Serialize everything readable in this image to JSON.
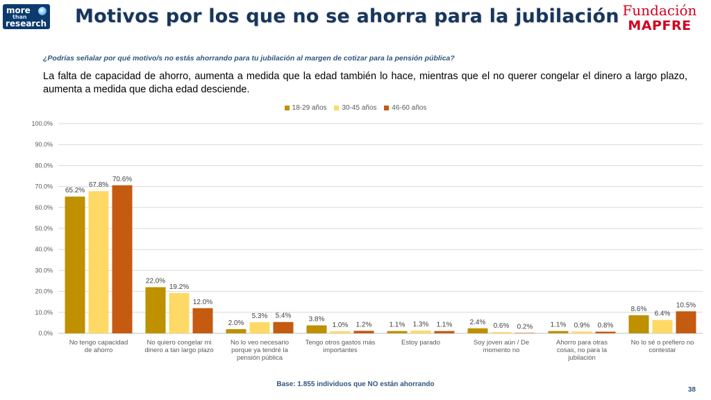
{
  "header": {
    "title": "Motivos por los que no se ahorra para la jubilación",
    "logo_left": {
      "line1": "more",
      "line2": "than",
      "line3": "research"
    },
    "logo_right": {
      "line1": "Fundación",
      "line2": "MAPFRE"
    }
  },
  "question": "¿Podrías señalar por qué motivo/s no estás ahorrando para tu jubilación al margen de cotizar para la pensión pública?",
  "summary": "La falta de capacidad de ahorro, aumenta a medida que la edad también lo hace, mientras que el no querer congelar el dinero a largo plazo, aumenta a medida que dicha edad desciende.",
  "footer": {
    "base": "Base: 1.855 individuos que NO están ahorrando",
    "page_number": "38"
  },
  "chart_data": {
    "type": "bar",
    "title": "",
    "xlabel": "",
    "ylabel": "",
    "ylim": [
      0,
      100
    ],
    "yticks": [
      "0.0%",
      "10.0%",
      "20.0%",
      "30.0%",
      "40.0%",
      "50.0%",
      "60.0%",
      "70.0%",
      "80.0%",
      "90.0%",
      "100.0%"
    ],
    "grid": true,
    "legend_position": "top-center",
    "categories": [
      [
        "No tengo capacidad",
        "de ahorro"
      ],
      [
        "No quiero congelar mi",
        "dinero a tan largo plazo"
      ],
      [
        "No lo veo necesario",
        "porque ya tendré la",
        "pensión pública"
      ],
      [
        "Tengo otros gastos más",
        "importantes"
      ],
      [
        "Estoy parado"
      ],
      [
        "Soy joven aún / De",
        "momento no"
      ],
      [
        "Ahorro para otras",
        "cosas, no para la",
        "jubilación"
      ],
      [
        "No lo sé o prefiero no",
        "contestar"
      ]
    ],
    "series": [
      {
        "name": "18-29 años",
        "color": "#bf9000",
        "values": [
          65.2,
          22.0,
          2.0,
          3.8,
          1.1,
          2.4,
          1.1,
          8.6
        ],
        "labels": [
          "65.2%",
          "22.0%",
          "2.0%",
          "3.8%",
          "1.1%",
          "2.4%",
          "1.1%",
          "8.6%"
        ]
      },
      {
        "name": "30-45 años",
        "color": "#ffd966",
        "values": [
          67.8,
          19.2,
          5.3,
          1.0,
          1.3,
          0.6,
          0.9,
          6.4
        ],
        "labels": [
          "67.8%",
          "19.2%",
          "5.3%",
          "1.0%",
          "1.3%",
          "0.6%",
          "0.9%",
          "6.4%"
        ]
      },
      {
        "name": "46-60 años",
        "color": "#c55a11",
        "values": [
          70.6,
          12.0,
          5.4,
          1.2,
          1.1,
          0.2,
          0.8,
          10.5
        ],
        "labels": [
          "70.6%",
          "12.0%",
          "5.4%",
          "1.2%",
          "1.1%",
          "0.2%",
          "0.8%",
          "10.5%"
        ]
      }
    ]
  }
}
